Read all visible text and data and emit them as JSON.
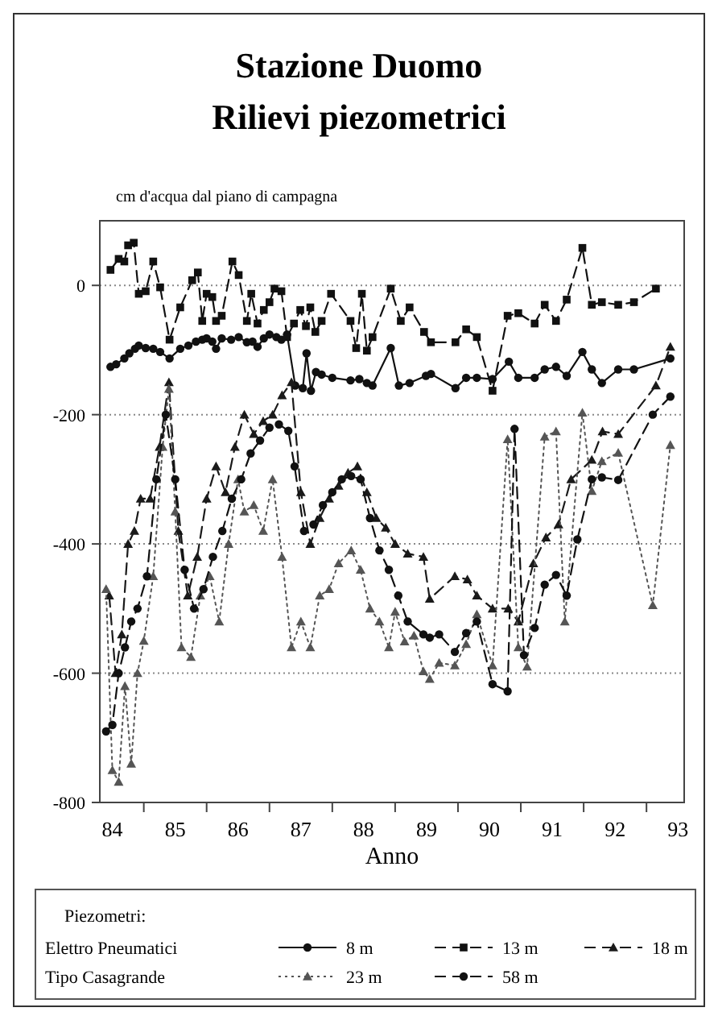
{
  "chart_data": {
    "type": "line",
    "title": "Stazione Duomo",
    "subtitle": "Rilievi piezometrici",
    "ylabel": "cm d'acqua dal piano di campagna",
    "xlabel": "Anno",
    "legend_title": "Piezometri:",
    "annotations": [
      "Elettro Pneumatici",
      "Tipo Casagrande"
    ],
    "legend": "bottom",
    "grid": "y",
    "xlim": [
      83.8,
      93.1
    ],
    "ylim": [
      -800,
      100
    ],
    "xticks": [
      {
        "value": 84.5,
        "label": null
      },
      {
        "value": 85.5,
        "label": null
      },
      {
        "value": 86.5,
        "label": null
      },
      {
        "value": 87.5,
        "label": null
      },
      {
        "value": 88.5,
        "label": null
      },
      {
        "value": 89.5,
        "label": null
      },
      {
        "value": 90.5,
        "label": null
      },
      {
        "value": 91.5,
        "label": null
      },
      {
        "value": 92.5,
        "label": null
      },
      84,
      85,
      86,
      87,
      88,
      89,
      90,
      91,
      92,
      93
    ],
    "yticks": [
      0,
      -200,
      -400,
      -600,
      -800
    ],
    "series": [
      {
        "name": "8 m",
        "color": "#111111",
        "marker": "circle",
        "line_style": "solid",
        "x": [
          83.97,
          84.06,
          84.19,
          84.27,
          84.36,
          84.42,
          84.53,
          84.65,
          84.76,
          84.91,
          85.08,
          85.21,
          85.33,
          85.43,
          85.5,
          85.59,
          85.65,
          85.74,
          85.89,
          86.01,
          86.14,
          86.23,
          86.31,
          86.41,
          86.5,
          86.61,
          86.69,
          86.78,
          86.91,
          87.03,
          87.09,
          87.16,
          87.24,
          87.33,
          87.5,
          87.79,
          87.93,
          88.05,
          88.14,
          88.43,
          88.56,
          88.73,
          88.99,
          89.07,
          89.46,
          89.63,
          89.8,
          90.05,
          90.31,
          90.46,
          90.72,
          90.88,
          91.06,
          91.23,
          91.48,
          91.63,
          91.79,
          92.05,
          92.3,
          92.88
        ],
        "values": [
          -126,
          -122,
          -113,
          -105,
          -98,
          -93,
          -97,
          -98,
          -103,
          -113,
          -98,
          -93,
          -87,
          -84,
          -82,
          -87,
          -98,
          -82,
          -84,
          -80,
          -88,
          -87,
          -95,
          -82,
          -76,
          -80,
          -84,
          -76,
          -155,
          -159,
          -105,
          -163,
          -134,
          -138,
          -143,
          -147,
          -145,
          -151,
          -155,
          -97,
          -155,
          -151,
          -140,
          -137,
          -159,
          -143,
          -143,
          -145,
          -118,
          -143,
          -143,
          -130,
          -126,
          -140,
          -103,
          -130,
          -151,
          -130,
          -130,
          -113
        ]
      },
      {
        "name": "13 m",
        "color": "#111111",
        "marker": "square",
        "line_style": "dashed",
        "x": [
          83.97,
          84.1,
          84.19,
          84.25,
          84.34,
          84.42,
          84.53,
          84.65,
          84.76,
          84.91,
          85.08,
          85.27,
          85.36,
          85.43,
          85.5,
          85.59,
          85.65,
          85.74,
          85.91,
          86.01,
          86.14,
          86.21,
          86.31,
          86.41,
          86.5,
          86.58,
          86.69,
          86.78,
          86.89,
          86.99,
          87.08,
          87.15,
          87.23,
          87.33,
          87.48,
          87.79,
          87.88,
          87.97,
          88.05,
          88.14,
          88.43,
          88.59,
          88.73,
          88.96,
          89.07,
          89.46,
          89.63,
          89.8,
          90.05,
          90.29,
          90.46,
          90.72,
          90.88,
          91.06,
          91.23,
          91.48,
          91.63,
          91.79,
          92.05,
          92.3,
          92.65
        ],
        "values": [
          24,
          41,
          37,
          62,
          66,
          -13,
          -9,
          37,
          -3,
          -84,
          -34,
          8,
          20,
          -55,
          -13,
          -18,
          -55,
          -47,
          37,
          16,
          -55,
          -13,
          -59,
          -38,
          -26,
          -5,
          -9,
          -80,
          -59,
          -38,
          -63,
          -34,
          -72,
          -55,
          -13,
          -55,
          -97,
          -13,
          -101,
          -80,
          -5,
          -55,
          -34,
          -72,
          -88,
          -88,
          -68,
          -80,
          -163,
          -47,
          -43,
          -59,
          -30,
          -55,
          -22,
          58,
          -30,
          -26,
          -30,
          -26,
          -5
        ]
      },
      {
        "name": "18 m",
        "color": "#1a1a1a",
        "marker": "triangle",
        "line_style": "dashed",
        "x": [
          83.95,
          84.05,
          84.15,
          84.25,
          84.35,
          84.45,
          84.6,
          84.75,
          84.9,
          85.05,
          85.2,
          85.35,
          85.5,
          85.65,
          85.8,
          85.95,
          86.1,
          86.25,
          86.4,
          86.55,
          86.7,
          86.85,
          87.0,
          87.15,
          87.3,
          87.45,
          87.6,
          87.75,
          87.9,
          88.05,
          88.2,
          88.35,
          88.5,
          88.7,
          88.95,
          89.05,
          89.45,
          89.65,
          89.8,
          90.05,
          90.3,
          90.46,
          90.7,
          90.9,
          91.1,
          91.3,
          91.63,
          91.8,
          92.05,
          92.65,
          92.88
        ],
        "values": [
          -480,
          -600,
          -540,
          -400,
          -380,
          -330,
          -330,
          -250,
          -150,
          -380,
          -480,
          -420,
          -330,
          -280,
          -320,
          -250,
          -200,
          -230,
          -210,
          -200,
          -170,
          -150,
          -320,
          -400,
          -360,
          -330,
          -310,
          -290,
          -280,
          -320,
          -360,
          -375,
          -400,
          -415,
          -420,
          -485,
          -450,
          -455,
          -480,
          -500,
          -500,
          -520,
          -430,
          -390,
          -370,
          -300,
          -270,
          -226,
          -230,
          -155,
          -95
        ]
      },
      {
        "name": "23 m",
        "color": "#555555",
        "marker": "triangle",
        "line_style": "dotted",
        "x": [
          83.9,
          84.0,
          84.1,
          84.2,
          84.3,
          84.4,
          84.5,
          84.65,
          84.8,
          84.9,
          85.0,
          85.1,
          85.25,
          85.4,
          85.55,
          85.7,
          85.85,
          86.0,
          86.1,
          86.25,
          86.4,
          86.55,
          86.7,
          86.85,
          87.0,
          87.15,
          87.3,
          87.45,
          87.6,
          87.8,
          87.95,
          88.1,
          88.25,
          88.4,
          88.5,
          88.65,
          88.8,
          88.95,
          89.05,
          89.2,
          89.45,
          89.63,
          89.8,
          90.05,
          90.29,
          90.46,
          90.6,
          90.88,
          91.06,
          91.2,
          91.48,
          91.63,
          91.79,
          92.05,
          92.6,
          92.88
        ],
        "values": [
          -470,
          -750,
          -768,
          -620,
          -740,
          -600,
          -550,
          -450,
          -250,
          -160,
          -350,
          -560,
          -575,
          -480,
          -450,
          -520,
          -400,
          -300,
          -350,
          -340,
          -380,
          -300,
          -420,
          -560,
          -520,
          -560,
          -480,
          -470,
          -430,
          -410,
          -440,
          -500,
          -520,
          -560,
          -505,
          -551,
          -542,
          -597,
          -609,
          -584,
          -588,
          -555,
          -509,
          -588,
          -238,
          -560,
          -590,
          -234,
          -226,
          -520,
          -197,
          -318,
          -272,
          -259,
          -495,
          -247
        ]
      },
      {
        "name": "58 m",
        "color": "#111111",
        "marker": "circle",
        "line_style": "dashed",
        "x": [
          83.9,
          84.0,
          84.1,
          84.2,
          84.3,
          84.4,
          84.55,
          84.7,
          84.85,
          85.0,
          85.15,
          85.3,
          85.45,
          85.6,
          85.75,
          85.9,
          86.05,
          86.2,
          86.35,
          86.5,
          86.65,
          86.8,
          86.9,
          87.05,
          87.2,
          87.35,
          87.5,
          87.65,
          87.8,
          87.95,
          88.1,
          88.25,
          88.4,
          88.55,
          88.7,
          88.95,
          89.05,
          89.2,
          89.45,
          89.63,
          89.8,
          90.05,
          90.29,
          90.4,
          90.55,
          90.72,
          90.88,
          91.06,
          91.23,
          91.4,
          91.63,
          91.79,
          92.05,
          92.6,
          92.88
        ],
        "values": [
          -690,
          -680,
          -600,
          -560,
          -520,
          -500,
          -450,
          -300,
          -200,
          -300,
          -440,
          -500,
          -470,
          -420,
          -380,
          -330,
          -300,
          -260,
          -240,
          -220,
          -215,
          -225,
          -280,
          -380,
          -370,
          -340,
          -320,
          -300,
          -295,
          -300,
          -360,
          -410,
          -440,
          -480,
          -520,
          -540,
          -545,
          -540,
          -567,
          -538,
          -520,
          -617,
          -628,
          -222,
          -572,
          -530,
          -463,
          -448,
          -480,
          -393,
          -300,
          -297,
          -301,
          -200,
          -172
        ]
      }
    ]
  }
}
